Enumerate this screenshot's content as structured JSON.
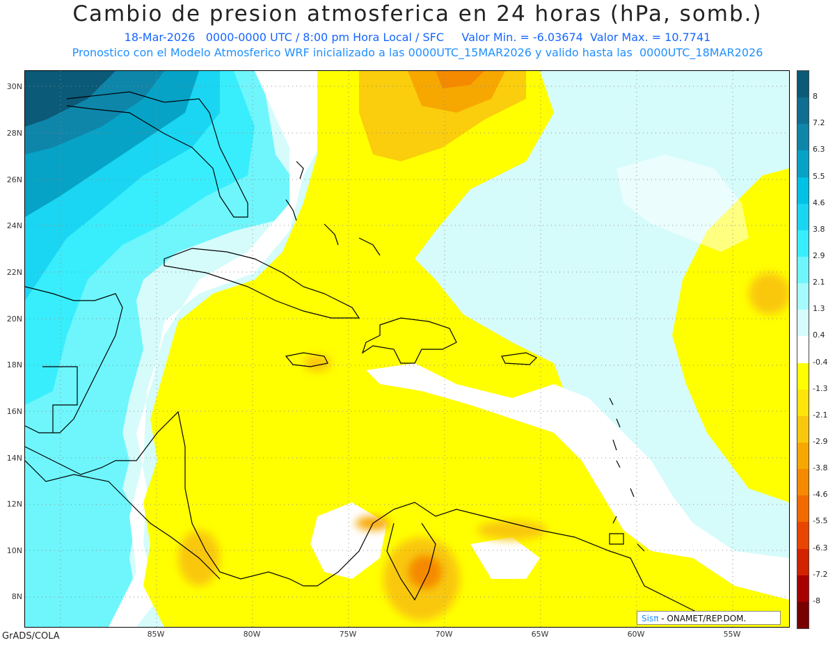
{
  "title": "Cambio de presion atmosferica en 24 horas (hPa, somb.)",
  "subtitle1": "18-Mar-2026   0000-0000 UTC / 8:00 pm Hora Local / SFC     Valor Min. = -6.03674  Valor Max. = 10.7741",
  "subtitle2": "Pronostico con el Modelo Atmosferico WRF inicializado a las 0000UTC_15MAR2026 y valido hasta las  0000UTC_18MAR2026",
  "lat_labels": [
    "30N",
    "28N",
    "26N",
    "24N",
    "22N",
    "20N",
    "18N",
    "16N",
    "14N",
    "12N",
    "10N",
    "8N"
  ],
  "lon_labels": [
    "85W",
    "80W",
    "75W",
    "70W",
    "65W",
    "60W",
    "55W"
  ],
  "colorbar": {
    "ticks": [
      "8",
      "7.2",
      "6.3",
      "5.5",
      "4.6",
      "3.8",
      "2.9",
      "2.1",
      "1.3",
      "0.4",
      "-0.4",
      "-1.3",
      "-2.1",
      "-2.9",
      "-3.8",
      "-4.6",
      "-5.5",
      "-6.3",
      "-7.2",
      "-8"
    ],
    "colors": [
      "#0a5a78",
      "#0f6e91",
      "#0e86aa",
      "#06a3c6",
      "#00c2e6",
      "#1ad6f2",
      "#38eefc",
      "#6ef6fc",
      "#a5fafc",
      "#d6fbfb",
      "#ffffff",
      "#ffff00",
      "#fde40a",
      "#f9c80e",
      "#f7a800",
      "#f58900",
      "#f26a00",
      "#e84500",
      "#d22200",
      "#a80000",
      "#780000"
    ]
  },
  "credit": {
    "sis": "Sisπ",
    "text": "- ONAMET/REP.DOM."
  },
  "footer": "GrADS/COLA"
}
